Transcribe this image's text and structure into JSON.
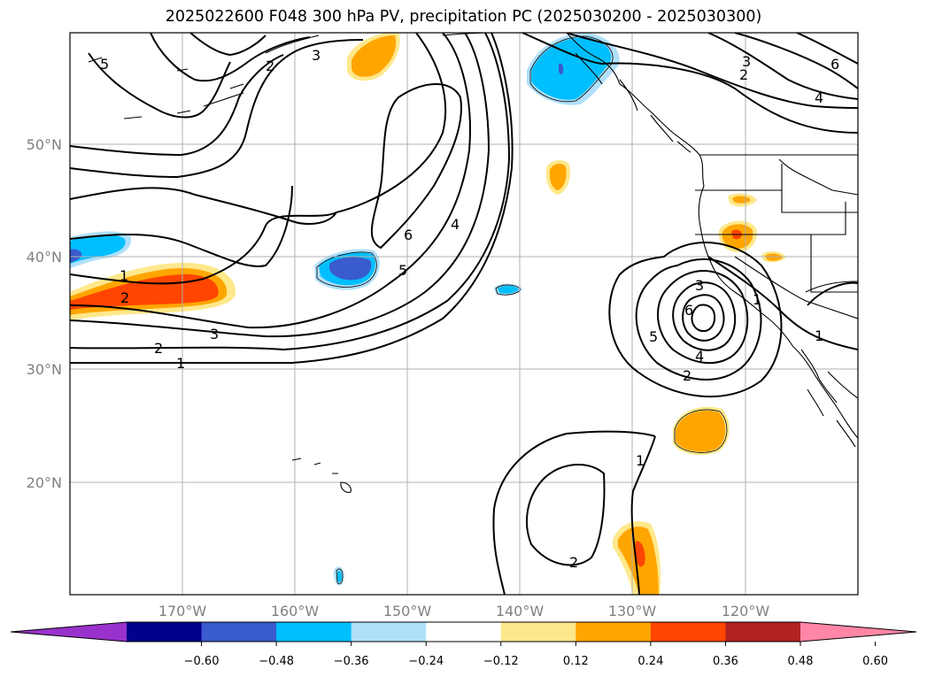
{
  "title": "2025022600 F048 300 hPa PV, precipitation PC (2025030200 - 2025030300)",
  "map": {
    "lat_ticks": [
      "50°N",
      "40°N",
      "30°N",
      "20°N"
    ],
    "lon_ticks": [
      "170°W",
      "160°W",
      "150°W",
      "140°W",
      "130°W",
      "120°W"
    ],
    "lat_values": [
      50,
      40,
      30,
      20
    ],
    "lon_values": [
      -170,
      -160,
      -150,
      -140,
      -130,
      -120
    ],
    "extent": {
      "lon_min": -180,
      "lon_max": -110,
      "lat_min": 10,
      "lat_max": 60
    }
  },
  "contour_labels": [
    "5",
    "2",
    "3",
    "2",
    "3",
    "6",
    "4",
    "1",
    "2",
    "2",
    "1",
    "3",
    "6",
    "4",
    "5",
    "3",
    "1",
    "6",
    "5",
    "4",
    "2",
    "1",
    "1",
    "2"
  ],
  "colorbar": {
    "ticks": [
      "−0.60",
      "−0.48",
      "−0.36",
      "−0.24",
      "−0.12",
      "0.12",
      "0.24",
      "0.36",
      "0.48",
      "0.60"
    ],
    "colors": [
      "#9932cc",
      "#00008b",
      "#3a5bcd",
      "#00bfff",
      "#b0e0fa",
      "#ffffff",
      "#fee88b",
      "#ffa500",
      "#ff4500",
      "#b22222",
      "#ff86a6"
    ]
  }
}
